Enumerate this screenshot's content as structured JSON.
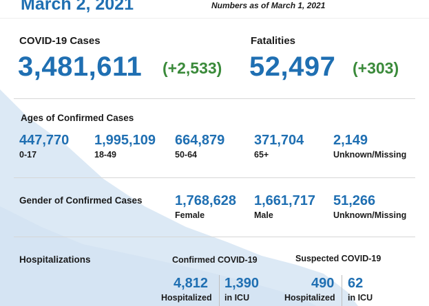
{
  "header": {
    "date": "March 2, 2021",
    "as_of": "Numbers as of March 1, 2021"
  },
  "cases": {
    "label": "COVID-19 Cases",
    "total": "3,481,611",
    "change": "(+2,533)"
  },
  "fatalities": {
    "label": "Fatalities",
    "total": "52,497",
    "change": "(+303)"
  },
  "ages": {
    "title": "Ages of Confirmed Cases",
    "groups": [
      {
        "value": "447,770",
        "label": "0-17"
      },
      {
        "value": "1,995,109",
        "label": "18-49"
      },
      {
        "value": "664,879",
        "label": "50-64"
      },
      {
        "value": "371,704",
        "label": "65+"
      },
      {
        "value": "2,149",
        "label": "Unknown/Missing"
      }
    ]
  },
  "gender": {
    "title": "Gender of Confirmed Cases",
    "groups": [
      {
        "value": "1,768,628",
        "label": "Female"
      },
      {
        "value": "1,661,717",
        "label": "Male"
      },
      {
        "value": "51,266",
        "label": "Unknown/Missing"
      }
    ]
  },
  "hospitalizations": {
    "title": "Hospitalizations",
    "confirmed": {
      "title": "Confirmed COVID-19",
      "hospitalized_value": "4,812",
      "hospitalized_label": "Hospitalized",
      "icu_value": "1,390",
      "icu_label": "in ICU"
    },
    "suspected": {
      "title": "Suspected COVID-19",
      "hospitalized_value": "490",
      "hospitalized_label": "Hospitalized",
      "icu_value": "62",
      "icu_label": "in ICU"
    }
  },
  "colors": {
    "accent_blue": "#1f6fb2",
    "change_green": "#3a8a3a",
    "map_fill": "#dce9f5"
  }
}
